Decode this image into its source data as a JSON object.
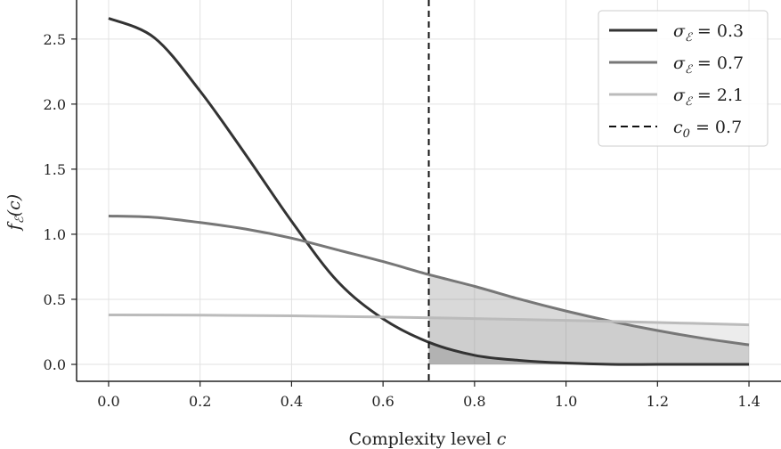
{
  "chart_data": {
    "type": "line",
    "title": "",
    "xlabel": "Complexity level c",
    "ylabel": "f_E(c)",
    "xlim": [
      -0.07,
      1.47
    ],
    "ylim": [
      -0.13,
      2.8
    ],
    "x_ticks": [
      0.0,
      0.2,
      0.4,
      0.6,
      0.8,
      1.0,
      1.2,
      1.4
    ],
    "x_tick_labels": [
      "0.0",
      "0.2",
      "0.4",
      "0.6",
      "0.8",
      "1.0",
      "1.2",
      "1.4"
    ],
    "y_ticks": [
      0.0,
      0.5,
      1.0,
      1.5,
      2.0,
      2.5
    ],
    "y_tick_labels": [
      "0.0",
      "0.5",
      "1.0",
      "1.5",
      "2.0",
      "2.5"
    ],
    "grid": true,
    "legend_position": "top-right",
    "series": [
      {
        "name": "σ_E = 0.3",
        "color": "#333333",
        "x": [
          0.0,
          0.1,
          0.2,
          0.3,
          0.4,
          0.5,
          0.6,
          0.7,
          0.8,
          0.9,
          1.0,
          1.1,
          1.2,
          1.3,
          1.4
        ],
        "y": [
          2.66,
          2.51,
          2.1,
          1.61,
          1.1,
          0.64,
          0.35,
          0.17,
          0.07,
          0.03,
          0.01,
          0.0,
          0.0,
          0.0,
          0.0
        ]
      },
      {
        "name": "σ_E = 0.7",
        "color": "#777777",
        "x": [
          0.0,
          0.1,
          0.2,
          0.3,
          0.4,
          0.5,
          0.6,
          0.7,
          0.8,
          0.9,
          1.0,
          1.1,
          1.2,
          1.3,
          1.4
        ],
        "y": [
          1.14,
          1.13,
          1.09,
          1.04,
          0.97,
          0.88,
          0.79,
          0.69,
          0.6,
          0.5,
          0.41,
          0.33,
          0.26,
          0.2,
          0.15
        ]
      },
      {
        "name": "σ_E = 2.1",
        "color": "#bbbbbb",
        "x": [
          0.0,
          0.2,
          0.4,
          0.6,
          0.8,
          1.0,
          1.2,
          1.4
        ],
        "y": [
          0.38,
          0.378,
          0.373,
          0.364,
          0.352,
          0.338,
          0.322,
          0.304
        ]
      }
    ],
    "threshold": {
      "name": "c_0 = 0.7",
      "x": 0.7,
      "color": "#111111",
      "style": "dashed"
    },
    "shaded_region": {
      "from_x": 0.7,
      "to_x": 1.4,
      "description": "tail beyond c_0 under each curve"
    },
    "legend": [
      {
        "id": "s03",
        "text": "σ_E = 0.3",
        "sym": "σ",
        "sub": "ℰ",
        "eq": " = 0.3",
        "color": "#333333",
        "dash": ""
      },
      {
        "id": "s07",
        "text": "σ_E = 0.7",
        "sym": "σ",
        "sub": "ℰ",
        "eq": " = 0.7",
        "color": "#777777",
        "dash": ""
      },
      {
        "id": "s21",
        "text": "σ_E = 2.1",
        "sym": "σ",
        "sub": "ℰ",
        "eq": " = 2.1",
        "color": "#bbbbbb",
        "dash": ""
      },
      {
        "id": "c0",
        "text": "c_0 = 0.7",
        "sym": "c",
        "sub": "0",
        "eq": " = 0.7",
        "color": "#111111",
        "dash": "8,5"
      }
    ],
    "ylabel_parts": {
      "main": "f",
      "sub": "ℰ",
      "arg": "(c)"
    },
    "xlabel_parts": {
      "main": "Complexity level ",
      "var": "c"
    }
  }
}
